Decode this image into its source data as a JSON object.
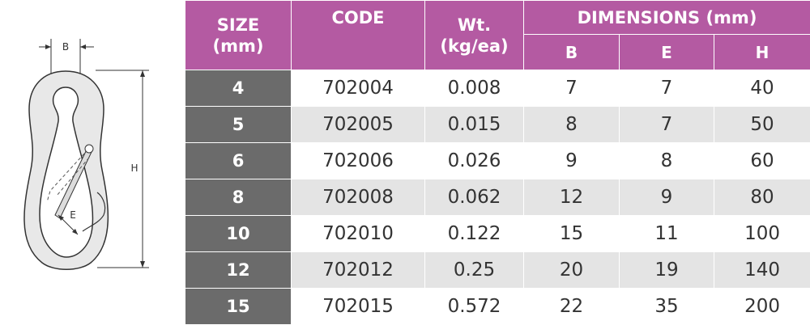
{
  "diagram": {
    "label_b": "B",
    "label_e": "E",
    "label_h": "H"
  },
  "table": {
    "header": {
      "size_line1": "SIZE",
      "size_line2": "(mm)",
      "code": "CODE",
      "wt_line1": "Wt.",
      "wt_line2": "(kg/ea)",
      "dimensions": "DIMENSIONS (mm)",
      "b": "B",
      "e": "E",
      "h": "H"
    },
    "rows": [
      {
        "size": "4",
        "code": "702004",
        "wt": "0.008",
        "b": "7",
        "e": "7",
        "h": "40"
      },
      {
        "size": "5",
        "code": "702005",
        "wt": "0.015",
        "b": "8",
        "e": "7",
        "h": "50"
      },
      {
        "size": "6",
        "code": "702006",
        "wt": "0.026",
        "b": "9",
        "e": "8",
        "h": "60"
      },
      {
        "size": "8",
        "code": "702008",
        "wt": "0.062",
        "b": "12",
        "e": "9",
        "h": "80"
      },
      {
        "size": "10",
        "code": "702010",
        "wt": "0.122",
        "b": "15",
        "e": "11",
        "h": "100"
      },
      {
        "size": "12",
        "code": "702012",
        "wt": "0.25",
        "b": "20",
        "e": "19",
        "h": "140"
      },
      {
        "size": "15",
        "code": "702015",
        "wt": "0.572",
        "b": "22",
        "e": "35",
        "h": "200"
      }
    ]
  },
  "colors": {
    "header_bg": "#b45aa2",
    "size_col_bg": "#6b6b6b",
    "alt_row_bg": "#e4e4e4"
  }
}
